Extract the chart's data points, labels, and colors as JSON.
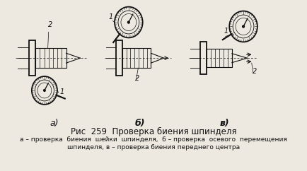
{
  "title_line1": "Рис  259  Проверка биения шпинделя",
  "title_line2": "а – проверка  биения  шейки  шпинделя,  б – проверка  осевого  перемещения",
  "title_line3": "шпинделя, в – проверка биения переднего центра",
  "label_a": "а)",
  "label_b": "б)",
  "label_v": "в)",
  "fig_width": 4.34,
  "fig_height": 2.42,
  "dpi": 100,
  "bg_color": "#ede8e0",
  "text_color": "#1a1a1a",
  "title_fontsize": 8.5,
  "subtitle_fontsize": 6.5,
  "label_fontsize": 9
}
